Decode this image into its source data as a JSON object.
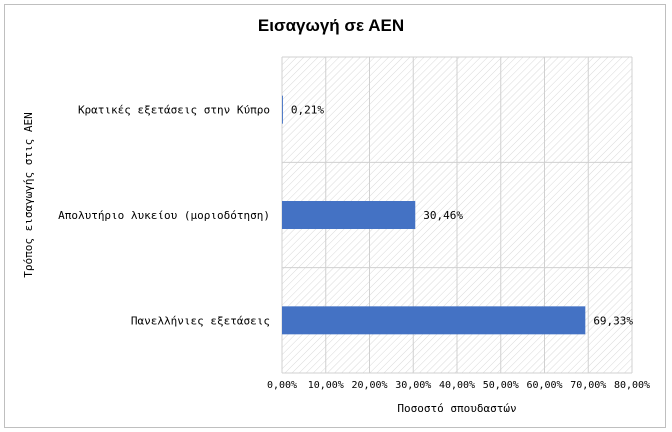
{
  "chart_data": {
    "type": "bar",
    "orientation": "horizontal",
    "title": "Εισαγωγή σε ΑΕΝ",
    "xlabel": "Ποσοστό σπουδαστών",
    "ylabel": "Τρόπος εισαγωγής στις ΑΕΝ",
    "categories": [
      "Κρατικές εξετάσεις στην Κύπρο",
      "Απολυτήριο λυκείου (μοριοδότηση)",
      "Πανελλήνιες εξετάσεις"
    ],
    "values": [
      0.21,
      30.46,
      69.33
    ],
    "data_labels": [
      "0,21%",
      "30,46%",
      "69,33%"
    ],
    "xlim": [
      0,
      80
    ],
    "xticks": [
      "0,00%",
      "10,00%",
      "20,00%",
      "30,00%",
      "40,00%",
      "50,00%",
      "60,00%",
      "70,00%",
      "80,00%"
    ],
    "grid": true,
    "bar_color": "#4472c4",
    "plot_background": "hatched"
  }
}
